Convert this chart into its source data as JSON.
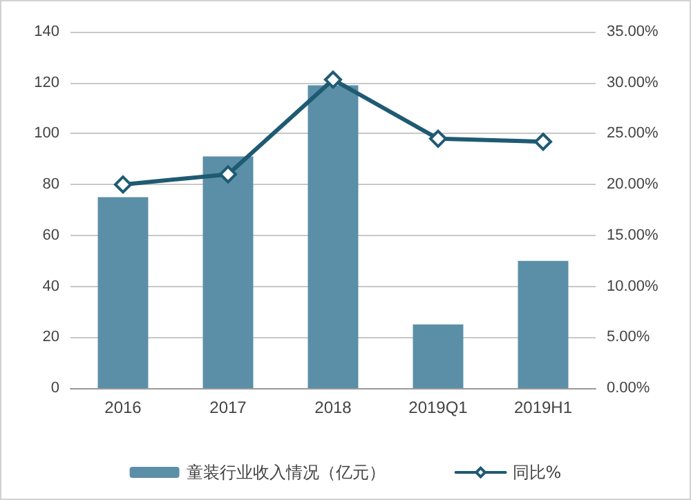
{
  "chart_data": {
    "type": "bar",
    "categories": [
      "2016",
      "2017",
      "2018",
      "2019Q1",
      "2019H1"
    ],
    "series": [
      {
        "name": "童装行业收入情况（亿元）",
        "color": "#5b8fa8",
        "values": [
          75,
          91,
          119,
          25,
          50
        ]
      },
      {
        "name": "同比%",
        "type": "line",
        "axis": "y2",
        "color": "#1f5a73",
        "marker": "diamond",
        "values": [
          20.0,
          21.0,
          30.3,
          24.5,
          24.2
        ]
      }
    ],
    "ylim": [
      0,
      140
    ],
    "yticks": [
      0,
      20,
      40,
      60,
      80,
      100,
      120,
      140
    ],
    "y2lim": [
      0,
      35
    ],
    "y2ticks": [
      {
        "value": 0,
        "label": "0.00%"
      },
      {
        "value": 5,
        "label": "5.00%"
      },
      {
        "value": 10,
        "label": "10.00%"
      },
      {
        "value": 15,
        "label": "15.00%"
      },
      {
        "value": 20,
        "label": "20.00%"
      },
      {
        "value": 25,
        "label": "25.00%"
      },
      {
        "value": 30,
        "label": "30.00%"
      },
      {
        "value": 35,
        "label": "35.00%"
      }
    ],
    "grid": "y",
    "legend": "bottom"
  }
}
